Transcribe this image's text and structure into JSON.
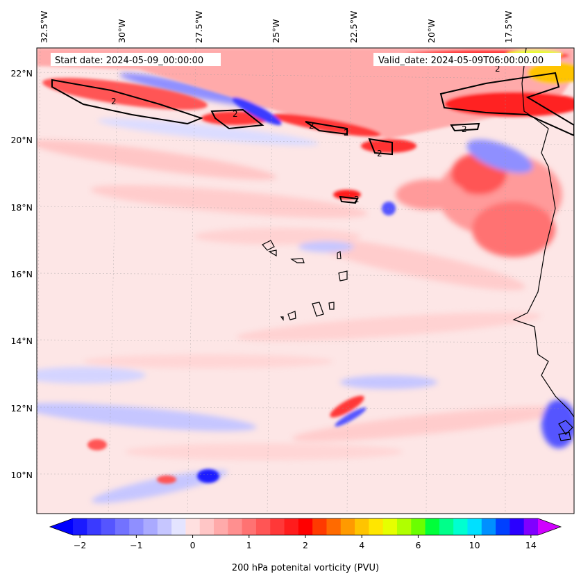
{
  "header": {
    "start_date": "Start date: 2024-05-09_00:00:00",
    "valid_date": "Valid_date: 2024-05-09T06:00:00.00"
  },
  "lon_labels": [
    "32.5°W",
    "30°W",
    "27.5°W",
    "25°W",
    "22.5°W",
    "20°W",
    "17.5°W"
  ],
  "lat_labels": [
    "22°N",
    "20°N",
    "18°N",
    "16°N",
    "14°N",
    "12°N",
    "10°N"
  ],
  "contour_label": "2",
  "colorbar": {
    "label": "200 hPa potenital vorticity (PVU)",
    "ticks": [
      "−2",
      "−1",
      "0",
      "1",
      "2",
      "4",
      "6",
      "10",
      "14"
    ],
    "colors": [
      "#1a1aff",
      "#3a3aff",
      "#5555ff",
      "#7272ff",
      "#8f8fff",
      "#aaaaff",
      "#c6c6ff",
      "#e4e4ff",
      "#ffe0e0",
      "#ffc6c6",
      "#ffaaaa",
      "#ff8f8f",
      "#ff7272",
      "#ff5555",
      "#ff3838",
      "#ff1c1c",
      "#ff0000",
      "#ff3a00",
      "#ff6a00",
      "#ff9a00",
      "#ffc400",
      "#ffe600",
      "#e6ff00",
      "#b0ff00",
      "#6aff00",
      "#00ff3a",
      "#00ff8a",
      "#00ffd0",
      "#00e0ff",
      "#0090ff",
      "#0040ff",
      "#2a00ff",
      "#8000ff"
    ],
    "under_color": "#0000ff",
    "over_color": "#d000ff"
  },
  "chart_data": {
    "type": "heatmap",
    "variable": "200 hPa potenital vorticity (PVU)",
    "contour_level": 2,
    "colorbar_ticks": [
      -2,
      -1,
      0,
      1,
      2,
      4,
      6,
      10,
      14
    ],
    "lon_range": [
      -33,
      -16
    ],
    "lat_range": [
      9,
      22.8
    ],
    "features": [
      {
        "name": "high PV band",
        "lat_range": [
          18,
          22
        ],
        "approx_value": 2.5
      },
      {
        "name": "Cape Verde islands",
        "lat": 16,
        "lon": -24
      }
    ]
  }
}
